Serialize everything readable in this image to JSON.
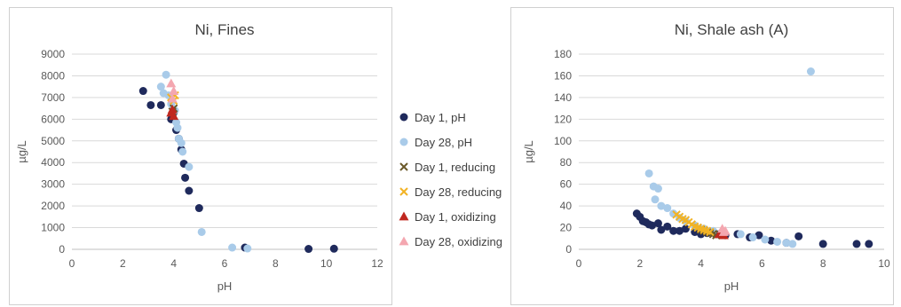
{
  "chart_data": [
    {
      "type": "scatter",
      "title": "Ni, Fines",
      "xlabel": "pH",
      "ylabel": "µg/L",
      "xlim": [
        0,
        12
      ],
      "ylim": [
        0,
        9000
      ],
      "xticks": [
        "0",
        "2",
        "4",
        "6",
        "8",
        "10",
        "12"
      ],
      "yticks": [
        "0",
        "1000",
        "2000",
        "3000",
        "4000",
        "5000",
        "6000",
        "7000",
        "8000",
        "9000"
      ],
      "grid": "horizontal",
      "series": [
        {
          "name": "Day 1, pH",
          "marker": "circle",
          "color": "#1f2a5c",
          "points": [
            [
              2.8,
              7300
            ],
            [
              3.1,
              6650
            ],
            [
              3.5,
              6650
            ],
            [
              3.9,
              6000
            ],
            [
              4.0,
              6300
            ],
            [
              4.1,
              5500
            ],
            [
              4.2,
              5100
            ],
            [
              4.3,
              4600
            ],
            [
              4.4,
              3950
            ],
            [
              4.45,
              3300
            ],
            [
              4.6,
              2700
            ],
            [
              5.0,
              1900
            ],
            [
              6.8,
              80
            ],
            [
              9.3,
              20
            ],
            [
              10.3,
              30
            ]
          ]
        },
        {
          "name": "Day 28, pH",
          "marker": "circle",
          "color": "#a9cbe9",
          "points": [
            [
              3.5,
              7500
            ],
            [
              3.6,
              7200
            ],
            [
              3.7,
              8050
            ],
            [
              3.8,
              7100
            ],
            [
              3.9,
              6700
            ],
            [
              4.05,
              6400
            ],
            [
              4.1,
              5850
            ],
            [
              4.15,
              5600
            ],
            [
              4.2,
              5100
            ],
            [
              4.3,
              4900
            ],
            [
              4.35,
              4500
            ],
            [
              4.6,
              3800
            ],
            [
              5.1,
              800
            ],
            [
              6.3,
              80
            ],
            [
              6.9,
              40
            ]
          ]
        },
        {
          "name": "Day 1, reducing",
          "marker": "x",
          "color": "#6b5a2b",
          "points": [
            [
              3.95,
              6350
            ],
            [
              4.0,
              6500
            ]
          ]
        },
        {
          "name": "Day 28, reducing",
          "marker": "x",
          "color": "#f2b325",
          "points": [
            [
              3.9,
              7000
            ],
            [
              4.05,
              7100
            ],
            [
              4.0,
              6850
            ]
          ]
        },
        {
          "name": "Day 1, oxidizing",
          "marker": "triangle",
          "color": "#c0281f",
          "points": [
            [
              3.9,
              6300
            ],
            [
              4.0,
              6150
            ],
            [
              3.95,
              6450
            ]
          ]
        },
        {
          "name": "Day 28, oxidizing",
          "marker": "triangle",
          "color": "#f4a7b0",
          "points": [
            [
              3.9,
              7650
            ],
            [
              4.0,
              7300
            ],
            [
              3.95,
              6950
            ]
          ]
        }
      ]
    },
    {
      "type": "scatter",
      "title": "Ni, Shale ash (A)",
      "xlabel": "pH",
      "ylabel": "µg/L",
      "xlim": [
        0,
        10
      ],
      "ylim": [
        0,
        180
      ],
      "xticks": [
        "0",
        "2",
        "4",
        "6",
        "8",
        "10"
      ],
      "yticks": [
        "0",
        "20",
        "40",
        "60",
        "80",
        "100",
        "120",
        "140",
        "160",
        "180"
      ],
      "grid": "horizontal",
      "series": [
        {
          "name": "Day 1, pH",
          "marker": "circle",
          "color": "#1f2a5c",
          "points": [
            [
              1.9,
              33
            ],
            [
              2.0,
              30
            ],
            [
              2.1,
              26
            ],
            [
              2.2,
              25
            ],
            [
              2.3,
              23
            ],
            [
              2.4,
              22
            ],
            [
              2.6,
              24
            ],
            [
              2.7,
              18
            ],
            [
              2.9,
              21
            ],
            [
              3.1,
              17
            ],
            [
              3.3,
              17
            ],
            [
              3.5,
              19
            ],
            [
              3.8,
              16
            ],
            [
              4.0,
              14
            ],
            [
              4.2,
              15
            ],
            [
              4.5,
              14
            ],
            [
              4.8,
              13
            ],
            [
              5.2,
              14
            ],
            [
              5.6,
              11
            ],
            [
              5.9,
              13
            ],
            [
              6.3,
              8
            ],
            [
              6.8,
              6
            ],
            [
              7.2,
              12
            ],
            [
              8.0,
              5
            ],
            [
              9.1,
              5
            ],
            [
              9.5,
              5
            ]
          ]
        },
        {
          "name": "Day 28, pH",
          "marker": "circle",
          "color": "#a9cbe9",
          "points": [
            [
              2.3,
              70
            ],
            [
              2.45,
              58
            ],
            [
              2.6,
              56
            ],
            [
              2.5,
              46
            ],
            [
              2.7,
              40
            ],
            [
              2.9,
              38
            ],
            [
              3.1,
              33
            ],
            [
              3.3,
              29
            ],
            [
              3.5,
              26
            ],
            [
              3.8,
              22
            ],
            [
              4.1,
              19
            ],
            [
              4.4,
              17
            ],
            [
              4.7,
              15
            ],
            [
              5.3,
              14
            ],
            [
              5.7,
              11
            ],
            [
              6.1,
              9
            ],
            [
              6.5,
              7
            ],
            [
              6.8,
              6
            ],
            [
              7.0,
              5
            ],
            [
              7.6,
              164
            ]
          ]
        },
        {
          "name": "Day 1, reducing",
          "marker": "x",
          "color": "#6b5a2b",
          "points": [
            [
              3.9,
              20
            ],
            [
              4.0,
              18
            ],
            [
              4.1,
              17
            ],
            [
              4.2,
              16
            ],
            [
              4.3,
              15
            ],
            [
              4.4,
              14
            ],
            [
              4.5,
              13
            ],
            [
              4.6,
              14
            ],
            [
              4.7,
              13
            ]
          ]
        },
        {
          "name": "Day 28, reducing",
          "marker": "x",
          "color": "#f2b325",
          "points": [
            [
              3.2,
              32
            ],
            [
              3.3,
              30
            ],
            [
              3.4,
              28
            ],
            [
              3.5,
              27
            ],
            [
              3.6,
              25
            ],
            [
              3.7,
              23
            ],
            [
              3.8,
              21
            ],
            [
              3.9,
              20
            ],
            [
              4.0,
              19
            ],
            [
              4.1,
              18
            ],
            [
              4.2,
              17
            ],
            [
              4.3,
              16
            ]
          ]
        },
        {
          "name": "Day 1, oxidizing",
          "marker": "triangle",
          "color": "#c0281f",
          "points": [
            [
              4.6,
              14
            ],
            [
              4.7,
              15
            ],
            [
              4.75,
              13
            ]
          ]
        },
        {
          "name": "Day 28, oxidizing",
          "marker": "triangle",
          "color": "#f4a7b0",
          "points": [
            [
              4.7,
              19
            ],
            [
              4.8,
              17
            ],
            [
              4.75,
              16
            ]
          ]
        }
      ]
    }
  ],
  "legend": {
    "placement": "center",
    "items": [
      {
        "label": "Day 1, pH",
        "marker": "circle",
        "color": "#1f2a5c"
      },
      {
        "label": "Day 28, pH",
        "marker": "circle",
        "color": "#a9cbe9"
      },
      {
        "label": "Day 1, reducing",
        "marker": "x",
        "color": "#6b5a2b"
      },
      {
        "label": "Day 28, reducing",
        "marker": "x",
        "color": "#f2b325"
      },
      {
        "label": "Day 1, oxidizing",
        "marker": "triangle",
        "color": "#c0281f"
      },
      {
        "label": "Day 28, oxidizing",
        "marker": "triangle",
        "color": "#f4a7b0"
      }
    ]
  }
}
